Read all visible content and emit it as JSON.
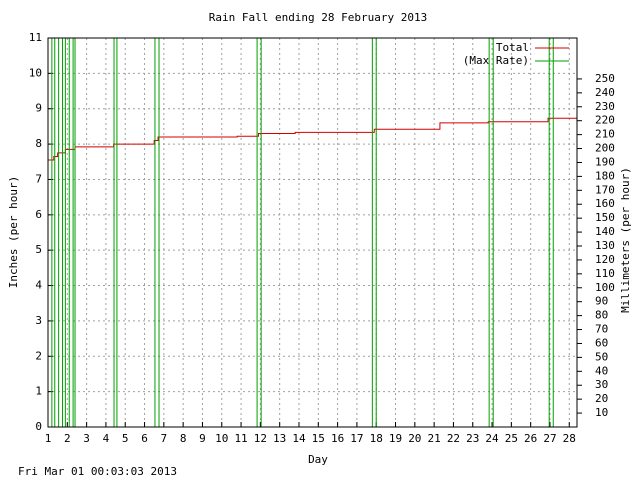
{
  "chart_data": {
    "type": "line",
    "title": "Rain Fall ending 28 February 2013",
    "x_label": "Day",
    "y_label": "Inches (per hour)",
    "y2_label": "Millimeters (per hour)",
    "timestamp": "Fri Mar 01 00:03:03 2013",
    "xlim": [
      1,
      28.4
    ],
    "xticks": [
      1,
      2,
      3,
      4,
      5,
      6,
      7,
      8,
      9,
      10,
      11,
      12,
      13,
      14,
      15,
      16,
      17,
      18,
      19,
      20,
      21,
      22,
      23,
      24,
      25,
      26,
      27,
      28
    ],
    "ylim": [
      0,
      11
    ],
    "yticks": [
      0,
      1,
      2,
      3,
      4,
      5,
      6,
      7,
      8,
      9,
      10,
      11
    ],
    "y2lim": [
      0,
      279.4
    ],
    "y2ticks": [
      10,
      20,
      30,
      40,
      50,
      60,
      70,
      80,
      90,
      100,
      110,
      120,
      130,
      140,
      150,
      160,
      170,
      180,
      190,
      200,
      210,
      220,
      230,
      240,
      250
    ],
    "grid": true,
    "legend": "top-right",
    "series": [
      {
        "name": "Total",
        "color": "#d00000",
        "x": [
          1,
          1.3,
          1.3,
          1.5,
          1.5,
          1.9,
          1.9,
          2.4,
          2.4,
          4.4,
          4.4,
          6.5,
          6.5,
          6.7,
          6.7,
          10.8,
          10.8,
          11.9,
          11.9,
          13.8,
          13.8,
          17.9,
          17.9,
          21.3,
          21.3,
          23.8,
          23.8,
          26.9,
          26.9,
          28.4
        ],
        "values": [
          7.55,
          7.55,
          7.65,
          7.65,
          7.75,
          7.75,
          7.85,
          7.85,
          7.92,
          7.92,
          8.0,
          8.0,
          8.1,
          8.1,
          8.2,
          8.2,
          8.22,
          8.22,
          8.3,
          8.3,
          8.33,
          8.33,
          8.42,
          8.42,
          8.6,
          8.6,
          8.63,
          8.63,
          8.73,
          8.73
        ]
      },
      {
        "name": "(Max Rate)",
        "color": "#00a000",
        "x": [
          1,
          1.2,
          1.2,
          1.35,
          1.35,
          1.55,
          1.55,
          1.75,
          1.75,
          1.9,
          1.9,
          2.1,
          2.1,
          2.3,
          2.3,
          2.4,
          2.4,
          4.42,
          4.42,
          4.57,
          4.57,
          6.54,
          6.54,
          6.75,
          6.75,
          11.83,
          11.83,
          12.04,
          12.04,
          17.8,
          17.8,
          18.0,
          18.0,
          23.85,
          23.85,
          24.06,
          24.06,
          26.96,
          26.96,
          27.17,
          27.17,
          28.4
        ],
        "values": [
          0,
          0,
          11,
          11,
          0,
          0,
          11,
          11,
          0,
          0,
          11,
          11,
          0,
          0,
          11,
          11,
          0,
          0,
          11,
          11,
          0,
          0,
          11,
          11,
          0,
          0,
          11,
          11,
          0,
          0,
          11,
          11,
          0,
          0,
          11,
          11,
          0,
          0,
          11,
          11,
          0,
          0
        ]
      }
    ]
  }
}
